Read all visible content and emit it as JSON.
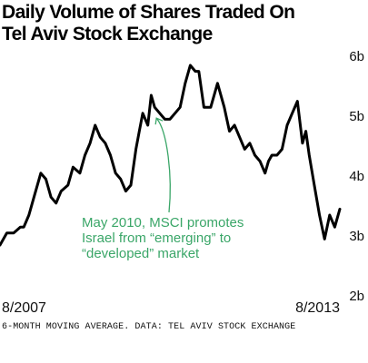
{
  "chart_data": {
    "type": "line",
    "title": [
      "Daily Volume of Shares Traded On",
      "Tel Aviv Stock Exchange"
    ],
    "xlabel": "",
    "ylabel": "",
    "x_tick_labels": [
      "8/2007",
      "8/2013"
    ],
    "y_ticks": [
      {
        "value": 2,
        "label": "2b"
      },
      {
        "value": 3,
        "label": "3b"
      },
      {
        "value": 4,
        "label": "4b"
      },
      {
        "value": 5,
        "label": "5b"
      },
      {
        "value": 6,
        "label": "6b"
      }
    ],
    "ylim": [
      2,
      6
    ],
    "grid": false,
    "series": [
      {
        "color": "#000000",
        "x": [
          0,
          0.02,
          0.04,
          0.06,
          0.07,
          0.085,
          0.1,
          0.12,
          0.135,
          0.15,
          0.165,
          0.18,
          0.2,
          0.215,
          0.235,
          0.25,
          0.265,
          0.28,
          0.295,
          0.31,
          0.325,
          0.34,
          0.355,
          0.37,
          0.385,
          0.4,
          0.41,
          0.42,
          0.435,
          0.445,
          0.455,
          0.47,
          0.485,
          0.5,
          0.515,
          0.53,
          0.545,
          0.56,
          0.575,
          0.585,
          0.6,
          0.62,
          0.64,
          0.66,
          0.675,
          0.69,
          0.705,
          0.72,
          0.735,
          0.75,
          0.765,
          0.78,
          0.79,
          0.8,
          0.815,
          0.83,
          0.845,
          0.86,
          0.875,
          0.89,
          0.9,
          0.91,
          0.925,
          0.94,
          0.955,
          0.97,
          0.985,
          1.0
        ],
        "values": [
          3.0,
          3.2,
          3.2,
          3.3,
          3.3,
          3.5,
          3.8,
          4.2,
          4.1,
          3.8,
          3.7,
          3.9,
          4.0,
          4.3,
          4.2,
          4.5,
          4.7,
          5.0,
          4.8,
          4.7,
          4.5,
          4.2,
          4.1,
          3.9,
          4.0,
          4.6,
          4.9,
          5.2,
          5.0,
          5.5,
          5.3,
          5.2,
          5.1,
          5.1,
          5.2,
          5.3,
          5.7,
          6.0,
          5.9,
          5.9,
          5.3,
          5.3,
          5.7,
          5.3,
          4.9,
          5.0,
          4.8,
          4.6,
          4.7,
          4.5,
          4.4,
          4.2,
          4.4,
          4.5,
          4.5,
          4.6,
          5.0,
          5.2,
          5.4,
          4.7,
          4.9,
          4.5,
          4.0,
          3.5,
          3.1,
          3.5,
          3.3,
          3.6
        ]
      }
    ],
    "annotation": [
      "May 2010, MSCI promotes",
      "Israel from “emerging” to",
      "“developed” market"
    ],
    "annotation_color": "#3aa668",
    "annotation_target": {
      "x": 0.455,
      "y": 5.3
    }
  },
  "source": "6-MONTH MOVING AVERAGE. DATA: TEL AVIV STOCK EXCHANGE"
}
